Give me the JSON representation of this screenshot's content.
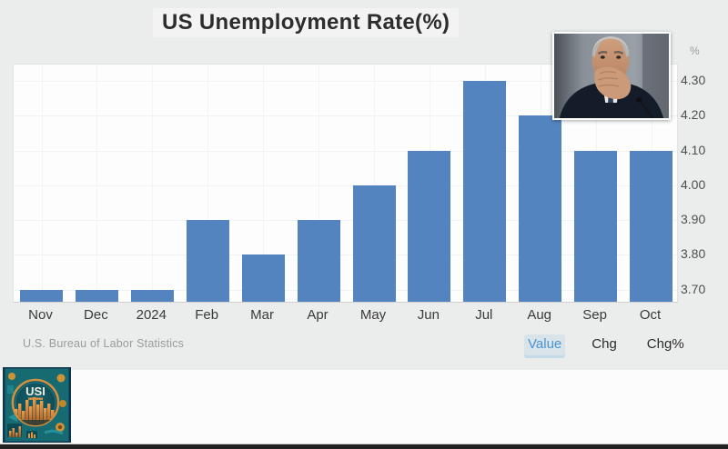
{
  "title": "US Unemployment Rate(%)",
  "chart_data": {
    "type": "bar",
    "categories": [
      "Nov",
      "Dec",
      "2024",
      "Feb",
      "Mar",
      "Apr",
      "May",
      "Jun",
      "Jul",
      "Aug",
      "Sep",
      "Oct"
    ],
    "values": [
      3.7,
      3.7,
      3.7,
      3.9,
      3.8,
      3.9,
      4.0,
      4.1,
      4.3,
      4.2,
      4.1,
      4.1
    ],
    "title": "US Unemployment Rate(%)",
    "xlabel": "",
    "ylabel": "%",
    "yticks": [
      3.7,
      3.8,
      3.9,
      4.0,
      4.1,
      4.2,
      4.3
    ],
    "ylim": [
      3.66,
      4.347
    ],
    "grid": true,
    "bar_color": "#5484c0",
    "legend_position": "none",
    "source": "U.S. Bureau of Labor Statistics"
  },
  "y_axis": {
    "unit_label": "%"
  },
  "footer": {
    "source": "U.S. Bureau of Labor Statistics",
    "tabs": [
      {
        "label": "Value",
        "active": true
      },
      {
        "label": "Chg",
        "active": false
      },
      {
        "label": "Chg%",
        "active": false
      }
    ]
  },
  "overlays": {
    "photo": "fed-chair-portrait-photo",
    "logo_text": "USI"
  },
  "colors": {
    "bar": "#5484c0",
    "active_tab": "#4795d2",
    "title_text": "#2d2d2d",
    "logo_teal": "#166b73",
    "logo_orange": "#d08a3a"
  }
}
